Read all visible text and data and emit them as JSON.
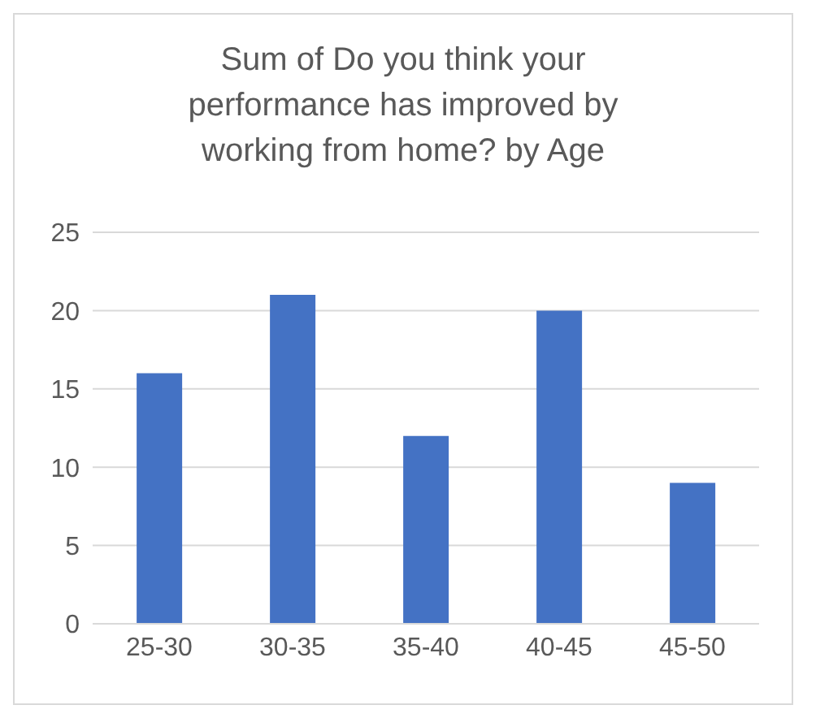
{
  "chart_data": {
    "type": "bar",
    "title": "Sum of Do you think your performance has improved by working from home? by Age",
    "categories": [
      "25-30",
      "30-35",
      "35-40",
      "40-45",
      "45-50"
    ],
    "values": [
      16,
      21,
      12,
      20,
      9
    ],
    "color": "#4472c4",
    "ylim": [
      0,
      25
    ],
    "yticks": [
      0,
      5,
      10,
      15,
      20,
      25
    ],
    "grid": "y"
  }
}
